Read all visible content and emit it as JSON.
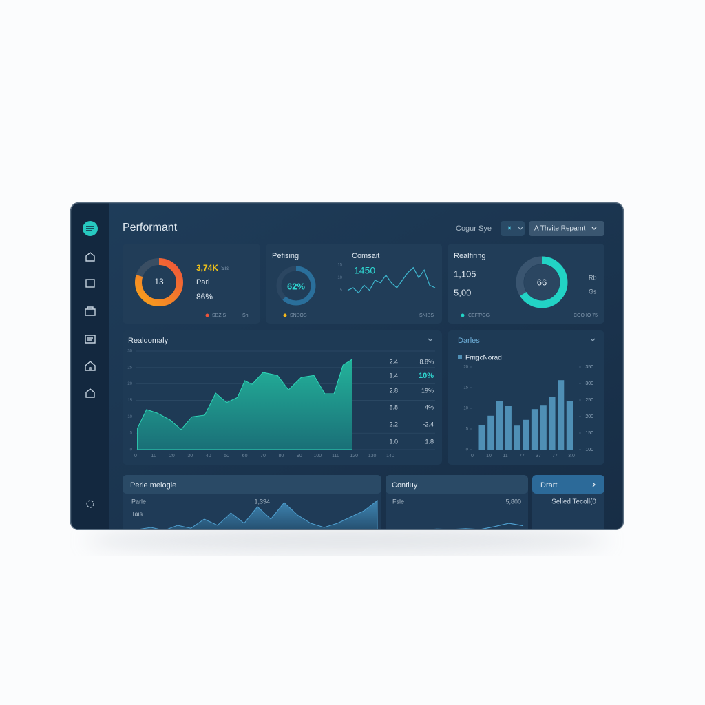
{
  "header": {
    "title": "Performant",
    "filter_label": "Cogur Sye",
    "button": "A Thvite Reparnt"
  },
  "stat_cards": [
    {
      "metric_top": "3,74K",
      "metric_top_unit": "Sis",
      "metric_mid": "Pari",
      "metric_bottom": "86%",
      "center_text": "13",
      "progress": 80,
      "legend": "SBZIS",
      "legend_note": "Shi"
    },
    {
      "title": "Pefising",
      "progress": 62,
      "progress_label": "62%",
      "subtitle": "Comsait",
      "metric": "1450",
      "legend": "SNBOS",
      "legend_note": "SNIBS",
      "spark": {
        "ylim": [
          0,
          15
        ],
        "yticks": [
          5,
          10,
          15
        ],
        "values": [
          5,
          6,
          4,
          7,
          5,
          9,
          8,
          11,
          8,
          6,
          9,
          12,
          14,
          10,
          13,
          7,
          6
        ]
      }
    },
    {
      "title": "Realfiring",
      "metric_top": "1,105",
      "metric_bottom": "5,00",
      "progress": 66,
      "side_top": "Rb",
      "side_bottom": "Gs",
      "legend": "CEFT/GG",
      "legend_note": "COO IO 75"
    }
  ],
  "area_panel": {
    "title": "Realdomaly",
    "color": "#1fa58f",
    "xlim": [
      0,
      140
    ],
    "xticks": [
      0,
      10,
      20,
      30,
      40,
      50,
      60,
      70,
      80,
      90,
      100,
      110,
      120,
      130,
      140
    ],
    "ylim": [
      0,
      30
    ],
    "yticks": [
      0,
      5,
      10,
      15,
      20,
      25,
      30
    ],
    "x": [
      1,
      6,
      12,
      19,
      25,
      31,
      38,
      44,
      50,
      56,
      60,
      64,
      70,
      78,
      84,
      91,
      98,
      104,
      109,
      114,
      119
    ],
    "values": [
      6.5,
      12.2,
      11.1,
      9,
      6.1,
      10,
      10.5,
      17.2,
      14.3,
      15.9,
      21,
      19.9,
      23.5,
      22.6,
      18.2,
      22,
      22.6,
      17,
      17,
      25.8,
      27.5
    ],
    "table": [
      [
        "2.4",
        "8.8%"
      ],
      [
        "1.4",
        "10%"
      ],
      [
        "2.8",
        "19%"
      ],
      [
        "5.8",
        "4%"
      ],
      [
        "2.2",
        "-2.4"
      ],
      [
        "1.0",
        "1.8"
      ]
    ],
    "highlight_cell": [
      1,
      1
    ],
    "highlight_color": "#2fd6d0"
  },
  "bar_panel": {
    "title": "Darles",
    "legend": "FrrigcNorad",
    "color": "#4f8fb5",
    "ylim": [
      0,
      20
    ],
    "yticks": [
      0,
      5,
      10,
      15,
      20
    ],
    "y2lim": [
      100,
      350
    ],
    "y2ticks": [
      100,
      150,
      200,
      250,
      300,
      350
    ],
    "values": [
      6,
      8.2,
      11.8,
      10.5,
      5.8,
      7.2,
      9.8,
      10.8,
      12.8,
      16.8,
      11.7
    ],
    "xlabels": [
      "0",
      "10",
      "11",
      "77",
      "37",
      "77",
      "3.0"
    ]
  },
  "bottom_cards": [
    {
      "title": "Perle melogie",
      "label_top": "Parle",
      "label_mid": "Tais",
      "metric": "1,394",
      "ylim": [
        0,
        10
      ],
      "values": [
        0.5,
        1,
        0.3,
        1.5,
        0.8,
        3,
        1.5,
        4.5,
        2,
        6,
        3,
        7,
        4,
        2,
        1,
        2,
        3.5,
        5,
        7.5
      ]
    },
    {
      "title": "Contluy",
      "label": "Fsle",
      "metric": "5,800",
      "ylim": [
        0,
        10
      ],
      "values": [
        0.4,
        0.5,
        0.4,
        0.6,
        0.5,
        0.7,
        0.5,
        1.2,
        2,
        1.4
      ]
    },
    {
      "title": "Drart",
      "text": "Selied Tecoll(0"
    }
  ]
}
